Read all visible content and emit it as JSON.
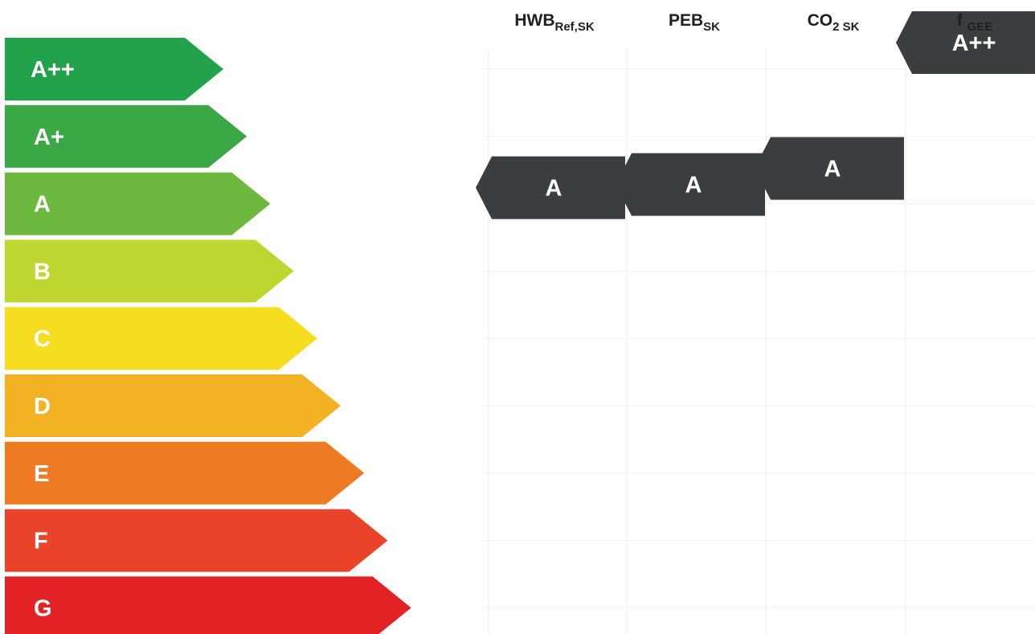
{
  "chart_data": {
    "type": "energy-rating-scale",
    "classes": [
      {
        "label": "A++",
        "color": "#22a24a"
      },
      {
        "label": "A+",
        "color": "#3aa845"
      },
      {
        "label": "A",
        "color": "#6db83f"
      },
      {
        "label": "B",
        "color": "#bfd630"
      },
      {
        "label": "C",
        "color": "#f7dd1f"
      },
      {
        "label": "D",
        "color": "#f2b224"
      },
      {
        "label": "E",
        "color": "#ee7a23"
      },
      {
        "label": "F",
        "color": "#e9442a"
      },
      {
        "label": "G",
        "color": "#e32226"
      }
    ],
    "columns": [
      {
        "name": "HWB",
        "sub": "Ref,SK",
        "rating": "A"
      },
      {
        "name": "PEB",
        "sub": "SK",
        "rating": "A"
      },
      {
        "name": "CO",
        "sub": "2 SK",
        "rating": "A"
      },
      {
        "name": "f ",
        "sub": "GEE",
        "rating": "A++"
      }
    ],
    "marker_color": "#3b3e41"
  }
}
